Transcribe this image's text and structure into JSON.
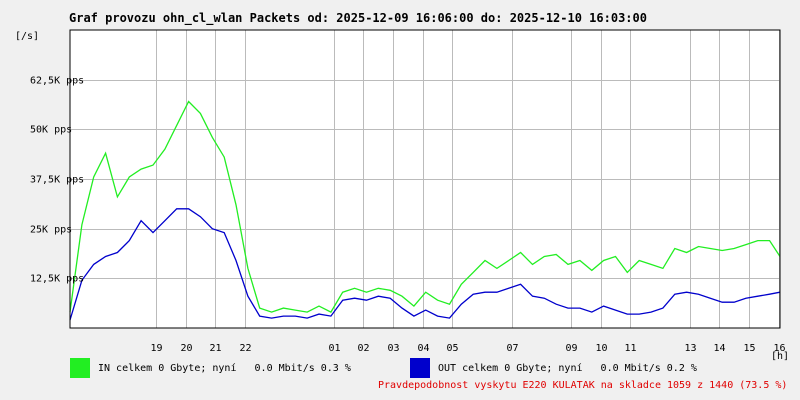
{
  "header": {
    "title": "Graf provozu ohn_cl_wlan Packets od: 2025-12-09 16:06:00 do: 2025-12-10 16:03:00",
    "y_unit": "[/s]",
    "x_unit": "[h]"
  },
  "legend": {
    "in_text": "IN celkem 0 Gbyte; nyní   0.0 Mbit/s 0.3 %",
    "out_text": "OUT celkem 0 Gbyte; nyní   0.0 Mbit/s 0.2 %"
  },
  "footer": {
    "text": "Pravdepodobnost vyskytu E220 KULATAK na skladce 1059 z 1440 (73.5 %)"
  },
  "colors": {
    "in": "#22ee22",
    "out": "#0000cc",
    "grid": "#bbbbbb",
    "plot_bg": "#ffffff",
    "page_bg": "#f0f0f0",
    "footer": "#e00000"
  },
  "chart_data": {
    "type": "line",
    "title": "Graf provozu ohn_cl_wlan Packets od: 2025-12-09 16:06:00 do: 2025-12-10 16:03:00",
    "xlabel": "[h]",
    "ylabel": "[/s]",
    "xlim": [
      16.1,
      40.05
    ],
    "ylim": [
      0,
      75000
    ],
    "grid": true,
    "y_ticks": [
      {
        "value": 12500,
        "label": "12,5K pps"
      },
      {
        "value": 25000,
        "label": "25K pps"
      },
      {
        "value": 37500,
        "label": "37,5K pps"
      },
      {
        "value": 50000,
        "label": "50K pps"
      },
      {
        "value": 62500,
        "label": "62,5K pps"
      }
    ],
    "x_ticks": [
      {
        "value": 19,
        "label": "19"
      },
      {
        "value": 20,
        "label": "20"
      },
      {
        "value": 21,
        "label": "21"
      },
      {
        "value": 22,
        "label": "22"
      },
      {
        "value": 25,
        "label": "01"
      },
      {
        "value": 26,
        "label": "02"
      },
      {
        "value": 27,
        "label": "03"
      },
      {
        "value": 28,
        "label": "04"
      },
      {
        "value": 29,
        "label": "05"
      },
      {
        "value": 31,
        "label": "07"
      },
      {
        "value": 33,
        "label": "09"
      },
      {
        "value": 34,
        "label": "10"
      },
      {
        "value": 35,
        "label": "11"
      },
      {
        "value": 37,
        "label": "13"
      },
      {
        "value": 38,
        "label": "14"
      },
      {
        "value": 39,
        "label": "15"
      },
      {
        "value": 40,
        "label": "16"
      }
    ],
    "series": [
      {
        "name": "IN",
        "x": [
          16.1,
          16.5,
          16.9,
          17.3,
          17.7,
          18.1,
          18.5,
          18.9,
          19.3,
          19.7,
          20.1,
          20.5,
          20.9,
          21.3,
          21.7,
          22.1,
          22.5,
          22.9,
          23.3,
          23.7,
          24.1,
          24.5,
          24.9,
          25.3,
          25.7,
          26.1,
          26.5,
          26.9,
          27.3,
          27.7,
          28.1,
          28.5,
          28.9,
          29.3,
          29.7,
          30.1,
          30.5,
          30.9,
          31.3,
          31.7,
          32.1,
          32.5,
          32.9,
          33.3,
          33.7,
          34.1,
          34.5,
          34.9,
          35.3,
          35.7,
          36.1,
          36.5,
          36.9,
          37.3,
          37.7,
          38.1,
          38.5,
          38.9,
          39.3,
          39.7,
          40.05
        ],
        "values": [
          4000,
          26000,
          38000,
          44000,
          33000,
          38000,
          40000,
          41000,
          45000,
          51000,
          57000,
          54000,
          48000,
          43000,
          31000,
          15000,
          5000,
          4000,
          5000,
          4500,
          4000,
          5500,
          4000,
          9000,
          10000,
          9000,
          10000,
          9500,
          8000,
          5500,
          9000,
          7000,
          6000,
          11000,
          14000,
          17000,
          15000,
          17000,
          19000,
          16000,
          18000,
          18500,
          16000,
          17000,
          14500,
          17000,
          18000,
          14000,
          17000,
          16000,
          15000,
          20000,
          19000,
          20500,
          20000,
          19500,
          20000,
          21000,
          22000,
          22000,
          18000
        ]
      },
      {
        "name": "OUT",
        "x": [
          16.1,
          16.5,
          16.9,
          17.3,
          17.7,
          18.1,
          18.5,
          18.9,
          19.3,
          19.7,
          20.1,
          20.5,
          20.9,
          21.3,
          21.7,
          22.1,
          22.5,
          22.9,
          23.3,
          23.7,
          24.1,
          24.5,
          24.9,
          25.3,
          25.7,
          26.1,
          26.5,
          26.9,
          27.3,
          27.7,
          28.1,
          28.5,
          28.9,
          29.3,
          29.7,
          30.1,
          30.5,
          30.9,
          31.3,
          31.7,
          32.1,
          32.5,
          32.9,
          33.3,
          33.7,
          34.1,
          34.5,
          34.9,
          35.3,
          35.7,
          36.1,
          36.5,
          36.9,
          37.3,
          37.7,
          38.1,
          38.5,
          38.9,
          39.3,
          39.7,
          40.05
        ],
        "values": [
          2000,
          12000,
          16000,
          18000,
          19000,
          22000,
          27000,
          24000,
          27000,
          30000,
          30000,
          28000,
          25000,
          24000,
          17000,
          8000,
          3000,
          2500,
          3000,
          3000,
          2500,
          3500,
          3000,
          7000,
          7500,
          7000,
          8000,
          7500,
          5000,
          3000,
          4500,
          3000,
          2500,
          6000,
          8500,
          9000,
          9000,
          10000,
          11000,
          8000,
          7500,
          6000,
          5000,
          5000,
          4000,
          5500,
          4500,
          3500,
          3500,
          4000,
          5000,
          8500,
          9000,
          8500,
          7500,
          6500,
          6500,
          7500,
          8000,
          8500,
          9000
        ]
      }
    ]
  }
}
